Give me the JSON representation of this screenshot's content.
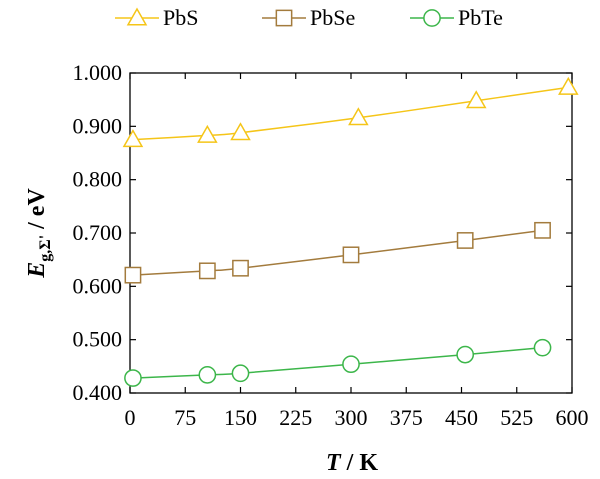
{
  "chart_data": {
    "type": "line",
    "xlabel": "T",
    "xlabel_unit": " / K",
    "ylabel_main": "E",
    "ylabel_sub": "g,Σ'",
    "ylabel_unit": " / eV",
    "xlim": [
      0,
      600
    ],
    "ylim": [
      0.4,
      1.0
    ],
    "xticks": [
      0,
      75,
      150,
      225,
      300,
      375,
      450,
      525,
      600
    ],
    "xtick_labels": [
      "0",
      "75",
      "150",
      "225",
      "300",
      "375",
      "450",
      "525",
      "600"
    ],
    "yticks": [
      0.4,
      0.5,
      0.6,
      0.7,
      0.8,
      0.9,
      1.0
    ],
    "ytick_labels": [
      "0.400",
      "0.500",
      "0.600",
      "0.700",
      "0.800",
      "0.900",
      "1.000"
    ],
    "grid": false,
    "legend_position": "top",
    "series": [
      {
        "name": "PbS",
        "color": "#f5c518",
        "marker": "triangle",
        "x": [
          4,
          105,
          150,
          310,
          470,
          595
        ],
        "y": [
          0.875,
          0.883,
          0.888,
          0.916,
          0.948,
          0.973
        ]
      },
      {
        "name": "PbSe",
        "color": "#a37b3d",
        "marker": "square",
        "x": [
          4,
          105,
          150,
          300,
          455,
          560
        ],
        "y": [
          0.621,
          0.629,
          0.634,
          0.659,
          0.686,
          0.705
        ]
      },
      {
        "name": "PbTe",
        "color": "#3cb64a",
        "marker": "circle",
        "x": [
          4,
          105,
          150,
          300,
          455,
          560
        ],
        "y": [
          0.428,
          0.434,
          0.437,
          0.454,
          0.472,
          0.485
        ]
      }
    ]
  }
}
